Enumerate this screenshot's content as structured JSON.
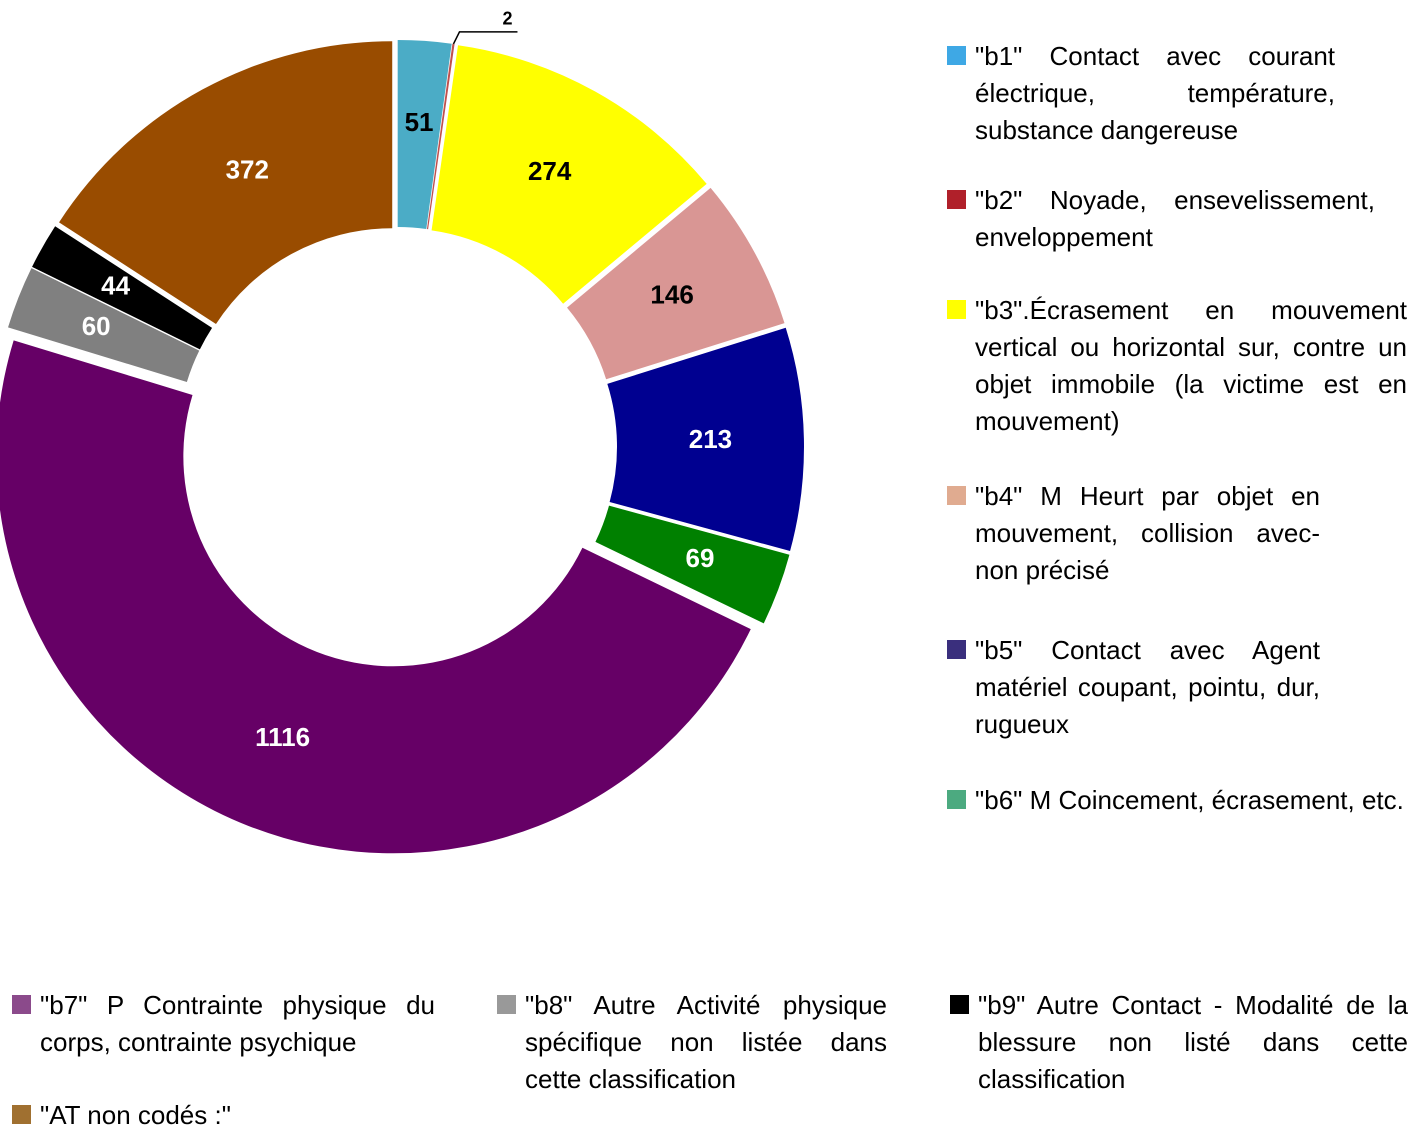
{
  "chart_data": {
    "type": "donut",
    "categories": [
      "\"b1\" Contact avec courant électrique, température, substance dangereuse",
      "\"b2\" Noyade, ensevelissement, enveloppement",
      "\"b3\".Écrasement en mouvement vertical ou horizontal sur, contre un objet immobile (la victime est en mouvement)",
      "\"b4\" M Heurt par objet en mouvement, collision avec-non précisé",
      "\"b5\" Contact avec Agent matériel coupant, pointu, dur, rugueux",
      "\"b6\" M Coincement, écrasement, etc.",
      "\"b7\" P Contrainte physique du corps, contrainte psychique",
      "\"b8\" Autre Activité physique spécifique non listée dans cette classification",
      "\"b9\" Autre Contact - Modalité de la blessure non listé dans cette classification",
      "\"AT non codés :\""
    ],
    "values": [
      51,
      2,
      274,
      146,
      213,
      69,
      1116,
      60,
      44,
      372
    ],
    "colors": [
      "#4bacc6",
      "#c0504d",
      "#ffff00",
      "#d99694",
      "#000090",
      "#008000",
      "#660066",
      "#808080",
      "#000000",
      "#994c00"
    ],
    "legend_colors": [
      "#3ea8e5",
      "#b0202a",
      "#ffff00",
      "#e0ab90",
      "#3a2f7d",
      "#4caa80",
      "#8b4a8b",
      "#999999",
      "#000000",
      "#a07030"
    ],
    "legend": "right-bottom"
  }
}
